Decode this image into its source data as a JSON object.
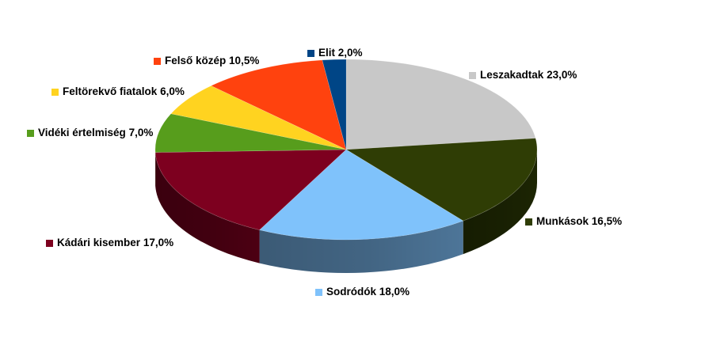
{
  "chart_data": {
    "type": "pie",
    "style": "3d",
    "title": "",
    "slices": [
      {
        "label": "Leszakadtak",
        "value": 23.0,
        "value_label": "23,0%",
        "color": "#c8c8c8"
      },
      {
        "label": "Munkások",
        "value": 16.5,
        "value_label": "16,5%",
        "color": "#2f3d05"
      },
      {
        "label": "Sodródók",
        "value": 18.0,
        "value_label": "18,0%",
        "color": "#7fc2fb"
      },
      {
        "label": "Kádári kisember",
        "value": 17.0,
        "value_label": "17,0%",
        "color": "#7d001f"
      },
      {
        "label": "Vidéki értelmiség",
        "value": 7.0,
        "value_label": "7,0%",
        "color": "#579d1c"
      },
      {
        "label": "Feltörekvő fiatalok",
        "value": 6.0,
        "value_label": "6,0%",
        "color": "#ffd320"
      },
      {
        "label": "Felső közép",
        "value": 10.5,
        "value_label": "10,5%",
        "color": "#ff420e"
      },
      {
        "label": "Elit",
        "value": 2.0,
        "value_label": "2,0%",
        "color": "#004586"
      }
    ]
  }
}
